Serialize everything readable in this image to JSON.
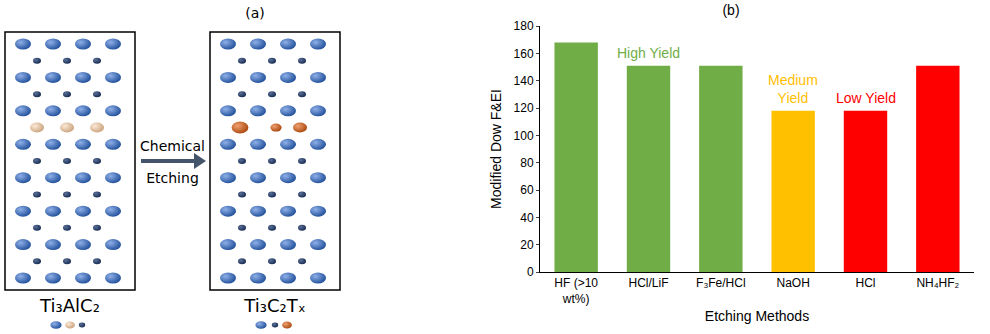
{
  "panel_a": {
    "label": "(a)",
    "left_label": "Ti₃AlC₂",
    "right_label": "Ti₃C₂Tₓ",
    "arrow_label": [
      "Chemical",
      "Etching"
    ]
  },
  "chart_data": {
    "type": "bar",
    "title": "(b)",
    "x_label": "Etching Methods",
    "y_label": "Modified Dow F&EI",
    "categories": [
      "HF (>10 wt%)",
      "HCl/LiF",
      "F₃Fe/HCl",
      "NaOH",
      "HCl",
      "NH₄HF₂"
    ],
    "values": [
      168,
      151,
      151,
      118,
      118,
      151
    ],
    "colors": [
      "#70ad47",
      "#70ad47",
      "#70ad47",
      "#ffc000",
      "#ff0000",
      "#ff0000"
    ],
    "ylim": [
      0,
      180
    ],
    "yticks": [
      0,
      20,
      40,
      60,
      80,
      100,
      120,
      140,
      160,
      180
    ],
    "grid": false,
    "annotations": [
      {
        "text": "High Yield",
        "category": "HCl/LiF",
        "color": "#70ad47"
      },
      {
        "text": "Medium Yield",
        "category": "NaOH",
        "color": "#ffc000"
      },
      {
        "text": "Low Yield",
        "category": "HCl",
        "color": "#ff0000"
      }
    ]
  }
}
